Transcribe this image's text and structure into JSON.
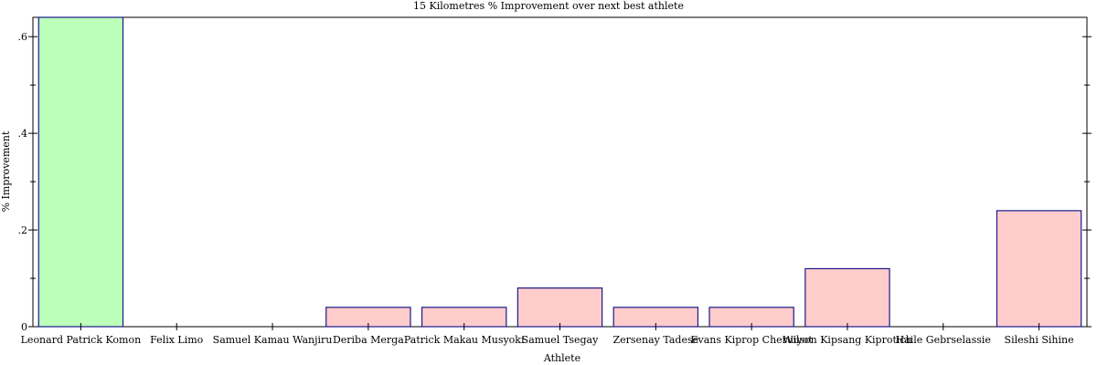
{
  "chart_data": {
    "type": "bar",
    "title": "15 Kilometres % Improvement over next best athlete",
    "xlabel": "Athlete",
    "ylabel": "% Improvement",
    "ylim": [
      0,
      0.64
    ],
    "yticks": [
      0,
      0.2,
      0.4,
      0.6
    ],
    "ytick_labels": [
      "0",
      ".2",
      ".4",
      ".6"
    ],
    "grid": false,
    "categories": [
      "Leonard Patrick Komon",
      "Felix Limo",
      "Samuel Kamau Wanjiru",
      "Deriba Merga",
      "Patrick Makau Musyoki",
      "Samuel Tsegay",
      "Zersenay Tadese",
      "Evans Kiprop Cheruiyot",
      "Wilson Kipsang Kiprotich",
      "Haile Gebrselassie",
      "Sileshi Sihine"
    ],
    "values": [
      0.64,
      0,
      0,
      0.04,
      0.04,
      0.08,
      0.04,
      0.04,
      0.12,
      0,
      0.24
    ],
    "highlight_index": 0,
    "colors": {
      "highlight_fill": "#bbffbb",
      "bar_fill": "#ffcccc",
      "bar_stroke": "#1a1a8c",
      "axis": "#000000"
    }
  }
}
